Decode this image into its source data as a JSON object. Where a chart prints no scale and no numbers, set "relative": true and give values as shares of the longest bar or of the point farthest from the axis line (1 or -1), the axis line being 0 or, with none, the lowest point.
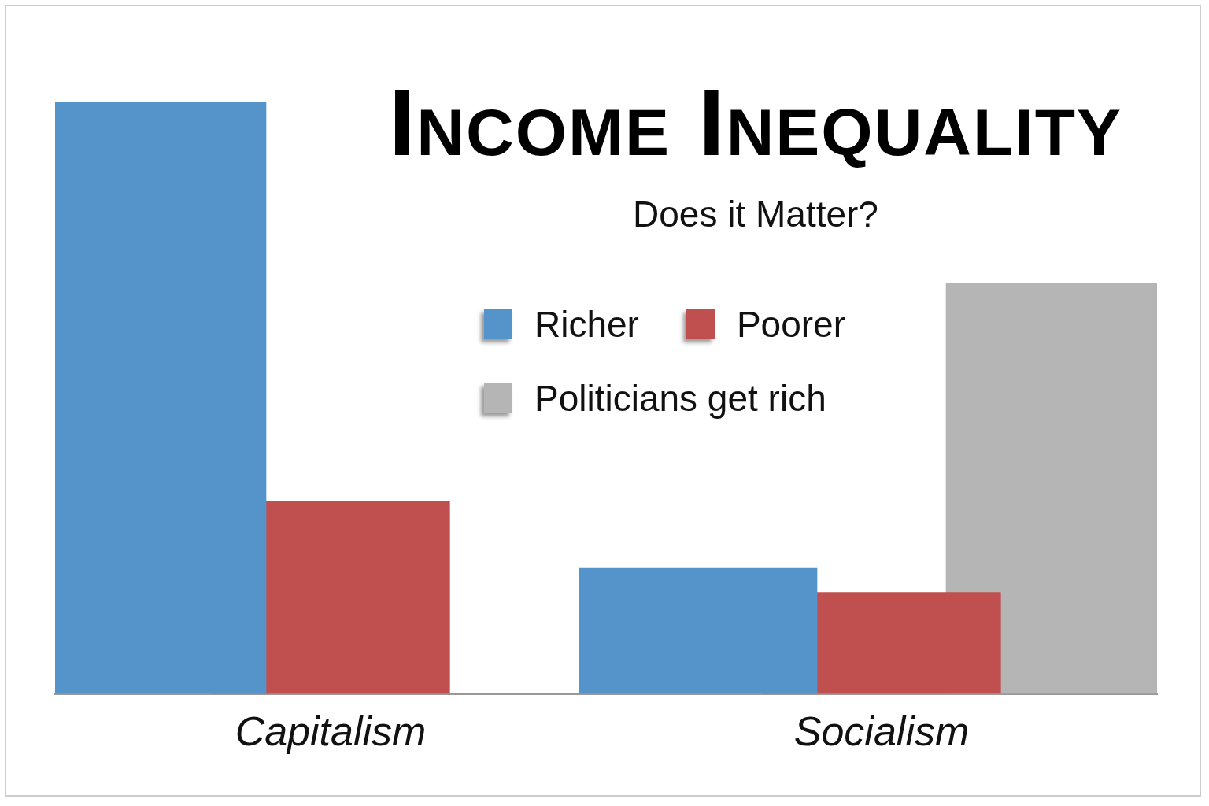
{
  "chart_data": {
    "type": "bar",
    "title": "Income Inequality",
    "subtitle": "Does it Matter?",
    "relative": true,
    "categories": [
      "Capitalism",
      "Socialism"
    ],
    "series": [
      {
        "name": "Richer",
        "color": "#5593cb",
        "values": [
          1,
          0.214
        ]
      },
      {
        "name": "Poorer",
        "color": "#c0504f",
        "values": [
          0.326,
          0.172
        ]
      },
      {
        "name": "Politicians get rich",
        "color": "#b5b5b5",
        "values": [
          null,
          0.695
        ]
      }
    ],
    "legend": "top",
    "grid": false
  }
}
